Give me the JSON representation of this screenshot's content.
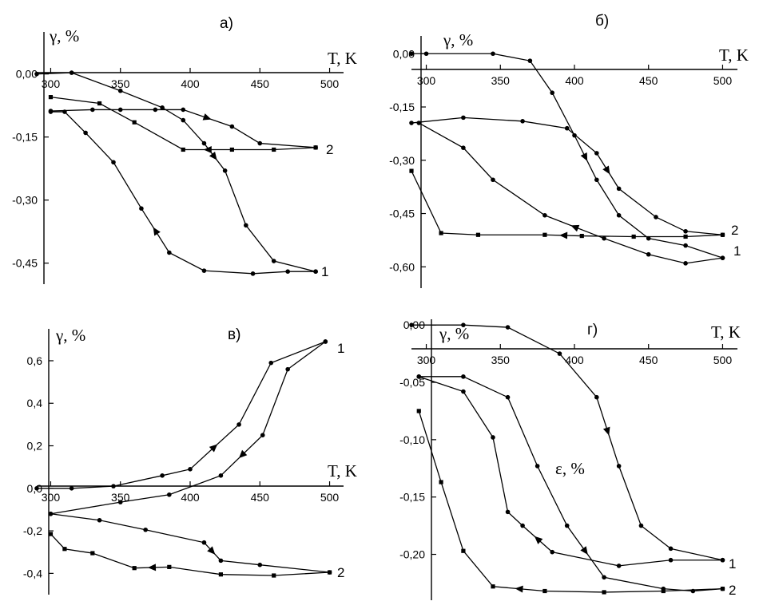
{
  "chart_data": [
    {
      "type": "line",
      "panel_label": "а)",
      "ylabel": "γ, %",
      "xlabel": "T, K",
      "xlim": [
        290,
        510
      ],
      "ylim": [
        -0.5,
        0.1
      ],
      "x_ticks": [
        300,
        350,
        400,
        450,
        500
      ],
      "y_ticks": [
        0.0,
        -0.15,
        -0.3,
        -0.45
      ],
      "y_tick_labels": [
        "0,00",
        "-0,15",
        "-0,30",
        "-0,45"
      ],
      "series": [
        {
          "name": "1",
          "heating": {
            "x": [
              290,
              315,
              350,
              380,
              395,
              410,
              425,
              440,
              460,
              490
            ],
            "y": [
              0.0,
              0.003,
              -0.04,
              -0.08,
              -0.11,
              -0.165,
              -0.23,
              -0.36,
              -0.445,
              -0.47
            ]
          },
          "cooling": {
            "x": [
              490,
              470,
              445,
              410,
              385,
              365,
              345,
              325,
              310,
              300
            ],
            "y": [
              -0.47,
              -0.47,
              -0.475,
              -0.468,
              -0.425,
              -0.32,
              -0.21,
              -0.14,
              -0.09,
              -0.09
            ]
          }
        },
        {
          "name": "2",
          "heating": {
            "x": [
              300,
              330,
              350,
              375,
              395,
              430,
              450,
              490
            ],
            "y": [
              -0.088,
              -0.085,
              -0.085,
              -0.085,
              -0.085,
              -0.125,
              -0.165,
              -0.175
            ]
          },
          "cooling": {
            "x": [
              490,
              460,
              430,
              395,
              360,
              335,
              300
            ],
            "y": [
              -0.175,
              -0.18,
              -0.18,
              -0.18,
              -0.115,
              -0.07,
              -0.055
            ]
          }
        }
      ],
      "curve_labels": [
        "1",
        "2"
      ]
    },
    {
      "type": "line",
      "panel_label": "б)",
      "ylabel": "γ, %",
      "xlabel": "T, K",
      "xlim": [
        290,
        510
      ],
      "ylim": [
        -0.66,
        0.05
      ],
      "x_ticks": [
        300,
        350,
        400,
        450,
        500
      ],
      "y_ticks": [
        0.0,
        -0.15,
        -0.3,
        -0.45,
        -0.6
      ],
      "y_tick_labels": [
        "0,00",
        "-0,15",
        "-0,30",
        "-0,45",
        "-0,60"
      ],
      "series": [
        {
          "name": "1",
          "heating": {
            "x": [
              290,
              300,
              345,
              370,
              385,
              400,
              415,
              430,
              450,
              475,
              500
            ],
            "y": [
              0.0,
              0.0,
              0.0,
              -0.02,
              -0.11,
              -0.23,
              -0.355,
              -0.455,
              -0.52,
              -0.54,
              -0.575
            ]
          },
          "cooling": {
            "x": [
              500,
              475,
              450,
              420,
              380,
              345,
              325,
              295
            ],
            "y": [
              -0.575,
              -0.59,
              -0.565,
              -0.52,
              -0.455,
              -0.355,
              -0.265,
              -0.195
            ]
          }
        },
        {
          "name": "2",
          "heating": {
            "x": [
              290,
              325,
              365,
              395,
              415,
              430,
              455,
              475,
              500
            ],
            "y": [
              -0.195,
              -0.18,
              -0.19,
              -0.21,
              -0.28,
              -0.38,
              -0.46,
              -0.5,
              -0.51
            ]
          },
          "cooling": {
            "x": [
              500,
              475,
              440,
              405,
              380,
              335,
              310,
              290
            ],
            "y": [
              -0.51,
              -0.515,
              -0.515,
              -0.513,
              -0.51,
              -0.51,
              -0.505,
              -0.33
            ]
          }
        }
      ],
      "curve_labels": [
        "2",
        "1"
      ]
    },
    {
      "type": "line",
      "panel_label": "в)",
      "ylabel": "γ, %",
      "xlabel": "T, K",
      "xlim": [
        290,
        510
      ],
      "ylim": [
        -0.5,
        0.75
      ],
      "x_ticks": [
        300,
        350,
        400,
        450,
        500
      ],
      "y_ticks": [
        0.6,
        0.4,
        0.2,
        0.0,
        -0.2,
        -0.4
      ],
      "y_tick_labels": [
        "0,6",
        "0,4",
        "0,2",
        "0,0",
        "-0,2",
        "-0,4"
      ],
      "series": [
        {
          "name": "1",
          "heating": {
            "x": [
              290,
              315,
              345,
              380,
              400,
              435,
              458,
              497
            ],
            "y": [
              0.0,
              0.0,
              0.01,
              0.06,
              0.09,
              0.3,
              0.59,
              0.69
            ]
          },
          "cooling": {
            "x": [
              497,
              470,
              452,
              422,
              385,
              350,
              300
            ],
            "y": [
              0.69,
              0.56,
              0.25,
              0.06,
              -0.03,
              -0.065,
              -0.12
            ]
          }
        },
        {
          "name": "2",
          "heating": {
            "x": [
              300,
              335,
              368,
              410,
              422,
              450,
              500
            ],
            "y": [
              -0.12,
              -0.15,
              -0.195,
              -0.255,
              -0.34,
              -0.36,
              -0.395
            ]
          },
          "cooling": {
            "x": [
              500,
              460,
              422,
              385,
              360,
              330,
              310,
              300
            ],
            "y": [
              -0.395,
              -0.41,
              -0.405,
              -0.37,
              -0.375,
              -0.305,
              -0.285,
              -0.215
            ]
          }
        }
      ],
      "curve_labels": [
        "1",
        "2"
      ]
    },
    {
      "type": "line",
      "panel_label": "г)",
      "ylabel": "γ, %",
      "xlabel": "T, K",
      "annotation": "ε, %",
      "xlim": [
        290,
        510
      ],
      "ylim": [
        -0.24,
        0.005
      ],
      "x_ticks": [
        300,
        350,
        400,
        450,
        500
      ],
      "y_ticks": [
        0.0,
        -0.05,
        -0.1,
        -0.15,
        -0.2
      ],
      "y_tick_labels": [
        "0,00",
        "-0,05",
        "-0,10",
        "-0,15",
        "-0,20"
      ],
      "series": [
        {
          "name": "1",
          "heating": {
            "x": [
              290,
              325,
              355,
              390,
              415,
              430,
              445,
              465,
              500
            ],
            "y": [
              0.0,
              0.0,
              -0.002,
              -0.025,
              -0.063,
              -0.123,
              -0.175,
              -0.195,
              -0.205
            ]
          },
          "cooling": {
            "x": [
              500,
              465,
              430,
              385,
              365,
              355,
              345,
              325,
              295
            ],
            "y": [
              -0.205,
              -0.205,
              -0.21,
              -0.198,
              -0.175,
              -0.163,
              -0.098,
              -0.058,
              -0.045
            ]
          }
        },
        {
          "name": "2",
          "heating": {
            "x": [
              295,
              325,
              355,
              375,
              395,
              420,
              460,
              480,
              500
            ],
            "y": [
              -0.045,
              -0.045,
              -0.063,
              -0.123,
              -0.175,
              -0.22,
              -0.23,
              -0.232,
              -0.23
            ]
          },
          "cooling": {
            "x": [
              500,
              460,
              420,
              380,
              345,
              325,
              310,
              295
            ],
            "y": [
              -0.23,
              -0.232,
              -0.233,
              -0.232,
              -0.228,
              -0.197,
              -0.137,
              -0.075
            ]
          }
        }
      ],
      "curve_labels": [
        "1",
        "2"
      ]
    }
  ]
}
